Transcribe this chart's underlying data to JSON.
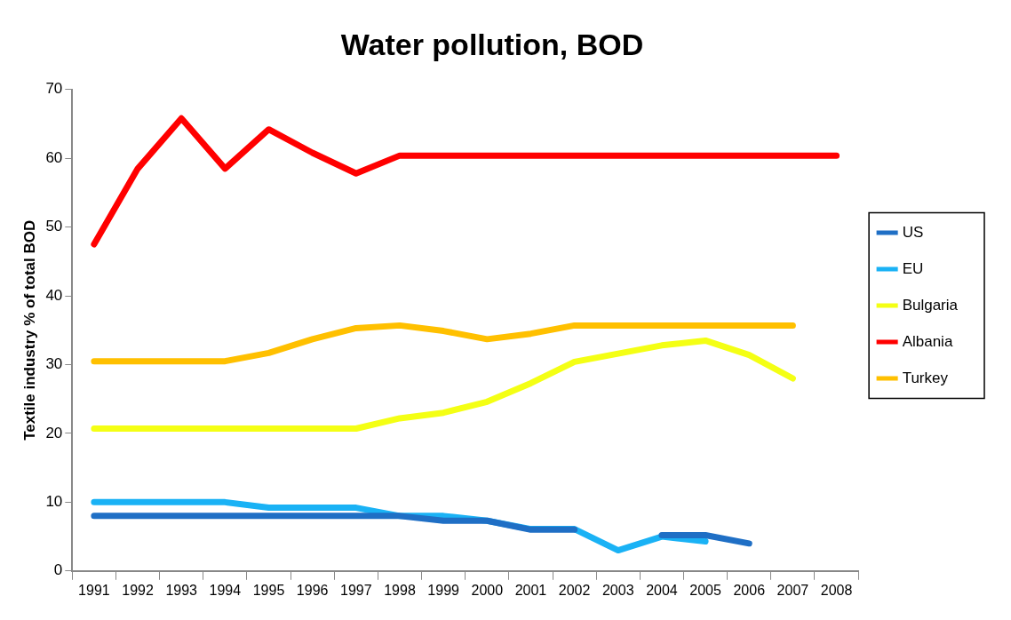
{
  "chart_data": {
    "type": "line",
    "title": "Water pollution, BOD",
    "ylabel": "Textile industry % of total BOD",
    "categories": [
      "1991",
      "1992",
      "1993",
      "1994",
      "1995",
      "1996",
      "1997",
      "1998",
      "1999",
      "2000",
      "2001",
      "2002",
      "2003",
      "2004",
      "2005",
      "2006",
      "2007",
      "2008"
    ],
    "series": [
      {
        "name": "US",
        "color": "#1f6fc5",
        "values": [
          8,
          8,
          8,
          8,
          8,
          8,
          8,
          8,
          7.3,
          7.3,
          6,
          6,
          null,
          5.2,
          5.2,
          4,
          null,
          null
        ]
      },
      {
        "name": "EU",
        "color": "#1ab2f5",
        "values": [
          10,
          10,
          10,
          10,
          9.2,
          9.2,
          9.2,
          8,
          8,
          7.3,
          6.1,
          6.1,
          3,
          5,
          4.3,
          null,
          null,
          null
        ]
      },
      {
        "name": "Bulgaria",
        "color": "#f4ff14",
        "values": [
          20.7,
          20.7,
          20.7,
          20.7,
          20.7,
          20.7,
          20.7,
          22.2,
          23,
          24.6,
          27.3,
          30.4,
          31.6,
          32.8,
          33.5,
          31.4,
          28,
          null
        ]
      },
      {
        "name": "Albania",
        "color": "#ff0000",
        "values": [
          47.5,
          58.5,
          65.8,
          58.5,
          64.2,
          60.8,
          57.8,
          60.4,
          60.4,
          60.4,
          60.4,
          60.4,
          60.4,
          60.4,
          60.4,
          60.4,
          60.4,
          60.4
        ]
      },
      {
        "name": "Turkey",
        "color": "#ffc000",
        "values": [
          30.5,
          30.5,
          30.5,
          30.5,
          31.7,
          33.7,
          35.3,
          35.7,
          34.9,
          33.7,
          34.5,
          35.7,
          35.7,
          35.7,
          35.7,
          35.7,
          35.7,
          null
        ]
      }
    ],
    "ylim": [
      0,
      70
    ],
    "yticks": [
      0,
      10,
      20,
      30,
      40,
      50,
      60,
      70
    ],
    "grid": false,
    "legend": "right",
    "marker": "none",
    "line_style": "solid"
  }
}
